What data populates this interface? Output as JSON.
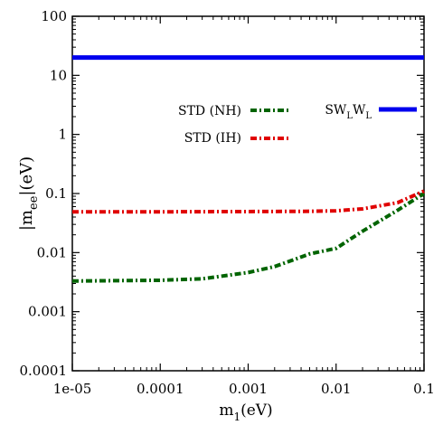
{
  "chart_data": {
    "type": "line",
    "x_scale": "log",
    "y_scale": "log",
    "xlim": [
      1e-05,
      0.1
    ],
    "ylim": [
      0.0001,
      100
    ],
    "x_ticks": [
      "1e-05",
      "0.0001",
      "0.001",
      "0.01",
      "0.1"
    ],
    "y_ticks": [
      "0.0001",
      "0.001",
      "0.01",
      "0.1",
      "1",
      "10",
      "100"
    ],
    "xlabel": {
      "main": "m",
      "sub": "1",
      "tail": "(eV)"
    },
    "ylabel": {
      "main": "|m",
      "sub": "ee",
      "tail": "|(eV)"
    },
    "grid": false,
    "legend_position": "top-right",
    "series": [
      {
        "name": "SW_L W_L",
        "label_parts": [
          "SW",
          "L",
          "W",
          "L"
        ],
        "color": "#0000ee",
        "style": "solid",
        "x": [
          1e-05,
          0.1
        ],
        "y": [
          20,
          20
        ]
      },
      {
        "name": "STD (NH)",
        "color": "#006400",
        "style": "dash-dot",
        "x": [
          1e-05,
          0.0001,
          0.0003,
          0.001,
          0.002,
          0.003,
          0.005,
          0.01,
          0.02,
          0.05,
          0.1
        ],
        "y": [
          0.0033,
          0.0034,
          0.0036,
          0.0046,
          0.0058,
          0.0072,
          0.0095,
          0.0118,
          0.023,
          0.052,
          0.1
        ]
      },
      {
        "name": "STD (IH)",
        "color": "#e00000",
        "style": "dash-dot",
        "x": [
          1e-05,
          0.0001,
          0.001,
          0.005,
          0.01,
          0.02,
          0.05,
          0.1
        ],
        "y": [
          0.049,
          0.049,
          0.0495,
          0.05,
          0.051,
          0.055,
          0.07,
          0.11
        ]
      }
    ]
  }
}
